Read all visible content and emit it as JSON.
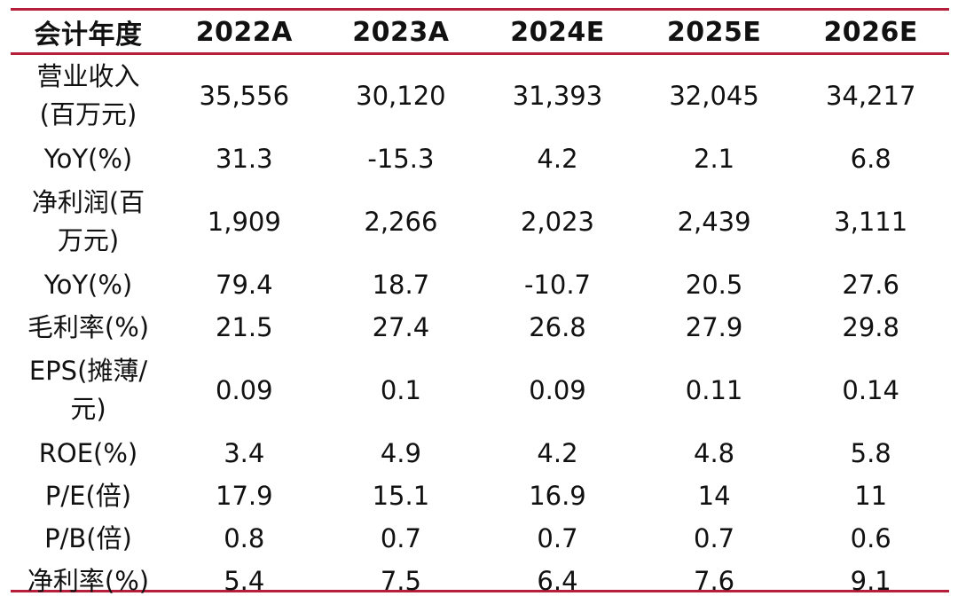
{
  "table": {
    "header": [
      "会计年度",
      "2022A",
      "2023A",
      "2024E",
      "2025E",
      "2026E"
    ],
    "rows": [
      {
        "label": "营业收入(百万元)",
        "values": [
          "35,556",
          "30,120",
          "31,393",
          "32,045",
          "34,217"
        ]
      },
      {
        "label": "YoY(%)",
        "values": [
          "31.3",
          "-15.3",
          "4.2",
          "2.1",
          "6.8"
        ]
      },
      {
        "label": "净利润(百万元)",
        "values": [
          "1,909",
          "2,266",
          "2,023",
          "2,439",
          "3,111"
        ]
      },
      {
        "label": "YoY(%)",
        "values": [
          "79.4",
          "18.7",
          "-10.7",
          "20.5",
          "27.6"
        ]
      },
      {
        "label": "毛利率(%)",
        "values": [
          "21.5",
          "27.4",
          "26.8",
          "27.9",
          "29.8"
        ]
      },
      {
        "label": "EPS(摊薄/元)",
        "values": [
          "0.09",
          "0.1",
          "0.09",
          "0.11",
          "0.14"
        ]
      },
      {
        "label": "ROE(%)",
        "values": [
          "3.4",
          "4.9",
          "4.2",
          "4.8",
          "5.8"
        ]
      },
      {
        "label": "P/E(倍)",
        "values": [
          "17.9",
          "15.1",
          "16.9",
          "14",
          "11"
        ]
      },
      {
        "label": "P/B(倍)",
        "values": [
          "0.8",
          "0.7",
          "0.7",
          "0.7",
          "0.6"
        ]
      },
      {
        "label": "净利率(%)",
        "values": [
          "5.4",
          "7.5",
          "6.4",
          "7.6",
          "9.1"
        ]
      }
    ]
  },
  "colors": {
    "rule": "#b51f3a",
    "text": "#111111",
    "background": "#ffffff"
  }
}
